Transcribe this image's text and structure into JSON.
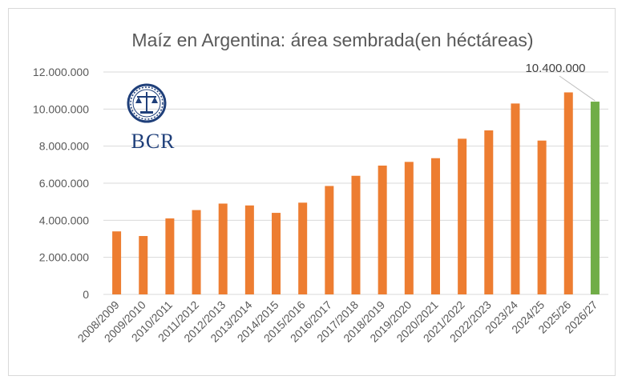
{
  "chart_data": {
    "type": "bar",
    "title": "Maíz en Argentina: área sembrada(en héctáreas)",
    "categories": [
      "2008/2009",
      "2009/2010",
      "2010/2011",
      "2011/2012",
      "2012/2013",
      "2013/2014",
      "2014/2015",
      "2015/2016",
      "2016/2017",
      "2017/2018",
      "2018/2019",
      "2019/2020",
      "2020/2021",
      "2021/2022",
      "2022/2023",
      "2023/24",
      "2024/25",
      "2025/26",
      "2026/27"
    ],
    "values": [
      3400000,
      3150000,
      4100000,
      4550000,
      4900000,
      4800000,
      4400000,
      4950000,
      5850000,
      6400000,
      6950000,
      7150000,
      7350000,
      8400000,
      8850000,
      10300000,
      8300000,
      10900000,
      10400000
    ],
    "highlight_index": 18,
    "data_labels": [
      {
        "index": 18,
        "text": "10.400.000"
      }
    ],
    "ylim": [
      0,
      12000000
    ],
    "yticks": [
      0,
      2000000,
      4000000,
      6000000,
      8000000,
      10000000,
      12000000
    ],
    "ytick_labels": [
      "0",
      "2.000.000",
      "4.000.000",
      "6.000.000",
      "8.000.000",
      "10.000.000",
      "12.000.000"
    ],
    "grid": true,
    "colors": {
      "bar": "#ed7d31",
      "highlight": "#70ad47",
      "grid": "#d9d9d9",
      "text": "#595959"
    }
  },
  "logo": {
    "text": "BCR",
    "color": "#1f3f7a"
  }
}
